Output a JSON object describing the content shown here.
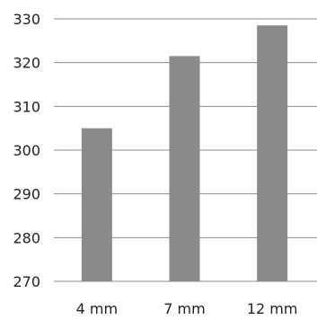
{
  "chart_data": {
    "type": "bar",
    "categories": [
      "4 mm",
      "7 mm",
      "12 mm"
    ],
    "values": [
      305,
      321.5,
      328.5
    ],
    "ylim": [
      270,
      330
    ],
    "yticks": [
      270,
      280,
      290,
      300,
      310,
      320,
      330
    ],
    "grid": true,
    "legend": "none",
    "bar_color": "#8a8a8a",
    "grid_color": "#8c8c8c"
  }
}
